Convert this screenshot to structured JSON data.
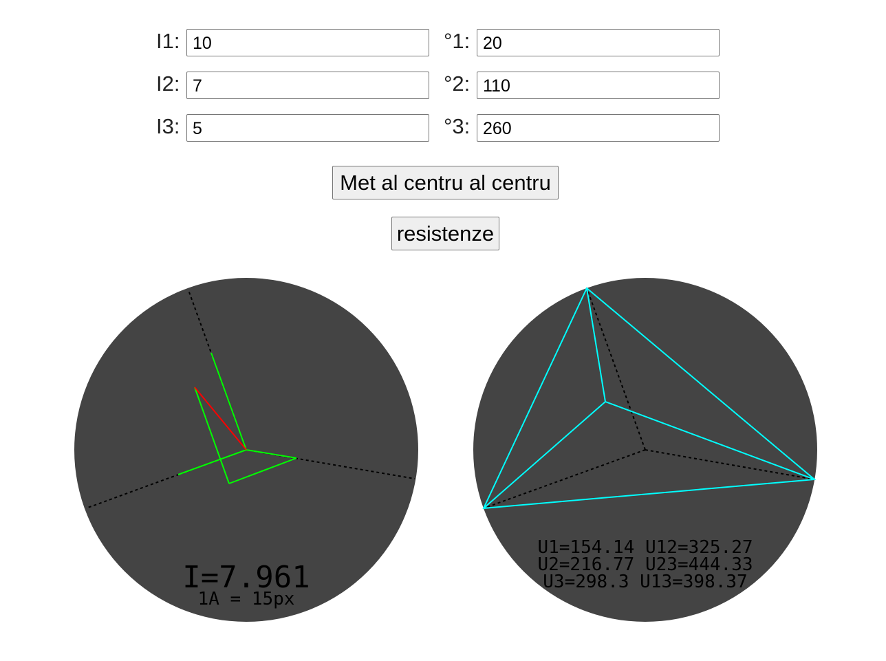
{
  "inputs": {
    "i1_label": "I1:",
    "i1_value": "10",
    "a1_label": "°1:",
    "a1_value": "20",
    "i2_label": "I2:",
    "i2_value": "7",
    "a2_label": "°2:",
    "a2_value": "110",
    "i3_label": "I3:",
    "i3_value": "5",
    "a3_label": "°3:",
    "a3_value": "260"
  },
  "buttons": {
    "center_label": "Met al centru al centru",
    "resistances_label": "resistenze"
  },
  "current_diagram": {
    "result_text": "I=7.961",
    "scale_text": "1A = 15px",
    "colors": {
      "background": "#444444",
      "phasors": "#00ff00",
      "resultant": "#ff0000",
      "axes": "#000000"
    }
  },
  "voltage_diagram": {
    "line1": "U1=154.14 U12=325.27",
    "line2": "U2=216.77 U23=444.33",
    "line3": "U3=298.3 U13=398.37",
    "colors": {
      "background": "#444444",
      "triangle": "#00ffff",
      "axes": "#000000"
    }
  }
}
